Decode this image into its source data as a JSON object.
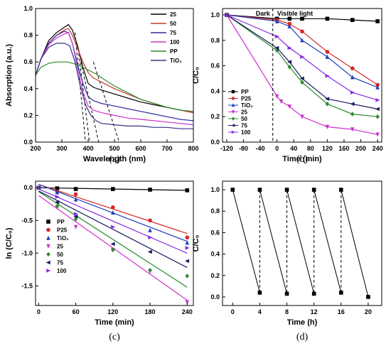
{
  "chart_data": [
    {
      "id": "a",
      "type": "line",
      "caption": "(a)",
      "xlabel": "Wavelength (nm)",
      "ylabel": "Absorption (a.u.)",
      "xlim": [
        200,
        800
      ],
      "ylim": [
        0,
        1.0
      ],
      "xticks": [
        200,
        300,
        400,
        500,
        600,
        700,
        800
      ],
      "yticks": [
        0.0,
        0.2,
        0.4,
        0.6,
        0.8,
        1.0
      ],
      "ytick_labels": [
        "0.0",
        "0.2",
        "0.4",
        "0.6",
        "0.8",
        "1.0"
      ],
      "legend_position": "top-right",
      "series": [
        {
          "name": "25",
          "color": "#000000",
          "x": [
            200,
            220,
            250,
            280,
            310,
            325,
            340,
            360,
            380,
            400,
            420,
            450,
            500,
            550,
            600,
            650,
            700,
            750,
            800
          ],
          "y": [
            0.5,
            0.62,
            0.76,
            0.82,
            0.86,
            0.88,
            0.84,
            0.72,
            0.56,
            0.44,
            0.41,
            0.39,
            0.36,
            0.33,
            0.3,
            0.28,
            0.26,
            0.24,
            0.22
          ]
        },
        {
          "name": "50",
          "color": "#c0392b",
          "x": [
            200,
            220,
            250,
            280,
            310,
            325,
            340,
            360,
            380,
            400,
            420,
            440,
            460,
            500,
            550,
            600,
            650,
            700,
            750,
            800
          ],
          "y": [
            0.5,
            0.62,
            0.74,
            0.8,
            0.84,
            0.85,
            0.8,
            0.7,
            0.6,
            0.52,
            0.48,
            0.46,
            0.44,
            0.4,
            0.36,
            0.32,
            0.29,
            0.26,
            0.24,
            0.22
          ]
        },
        {
          "name": "75",
          "color": "#2c2c9a",
          "x": [
            200,
            220,
            250,
            280,
            310,
            325,
            340,
            360,
            380,
            400,
            420,
            450,
            500,
            550,
            600,
            650,
            700,
            750,
            800
          ],
          "y": [
            0.5,
            0.62,
            0.74,
            0.8,
            0.83,
            0.82,
            0.74,
            0.58,
            0.44,
            0.34,
            0.31,
            0.29,
            0.27,
            0.25,
            0.23,
            0.21,
            0.19,
            0.17,
            0.16
          ]
        },
        {
          "name": "100",
          "color": "#cc33cc",
          "x": [
            200,
            220,
            250,
            280,
            310,
            325,
            340,
            360,
            380,
            400,
            420,
            450,
            500,
            550,
            600,
            650,
            700,
            750,
            800
          ],
          "y": [
            0.5,
            0.62,
            0.73,
            0.78,
            0.81,
            0.82,
            0.74,
            0.55,
            0.38,
            0.27,
            0.24,
            0.22,
            0.2,
            0.18,
            0.17,
            0.16,
            0.15,
            0.14,
            0.13
          ]
        },
        {
          "name": "PP",
          "color": "#2e8b2e",
          "x": [
            200,
            220,
            250,
            280,
            300,
            320,
            340,
            360,
            380,
            400,
            430,
            460,
            500,
            550,
            600,
            650,
            700,
            750,
            800
          ],
          "y": [
            0.5,
            0.56,
            0.59,
            0.6,
            0.6,
            0.6,
            0.59,
            0.58,
            0.56,
            0.54,
            0.51,
            0.47,
            0.42,
            0.37,
            0.32,
            0.29,
            0.26,
            0.24,
            0.23
          ]
        },
        {
          "name": "TiO₂",
          "color": "#33338a",
          "x": [
            200,
            220,
            250,
            280,
            310,
            330,
            350,
            370,
            390,
            410,
            430,
            450,
            500,
            550,
            600,
            650,
            700,
            750,
            800
          ],
          "y": [
            0.5,
            0.62,
            0.71,
            0.74,
            0.74,
            0.72,
            0.6,
            0.42,
            0.28,
            0.2,
            0.16,
            0.14,
            0.13,
            0.12,
            0.12,
            0.11,
            0.11,
            0.1,
            0.1
          ]
        }
      ],
      "tangent_lines": [
        {
          "color": "#000000",
          "x": [
            350,
            390
          ],
          "y": [
            0.82,
            0.0
          ]
        },
        {
          "color": "#000000",
          "x": [
            362,
            405
          ],
          "y": [
            0.7,
            0.0
          ]
        },
        {
          "color": "#000000",
          "x": [
            372,
            440
          ],
          "y": [
            0.6,
            0.0
          ]
        },
        {
          "color": "#000000",
          "x": [
            420,
            518
          ],
          "y": [
            0.6,
            0.0
          ]
        }
      ]
    },
    {
      "id": "b",
      "type": "line",
      "caption": "(b)",
      "xlabel": "Time (min)",
      "ylabel": "C/C₀",
      "xlim": [
        -130,
        250
      ],
      "ylim": [
        0,
        1.05
      ],
      "xticks": [
        -120,
        -80,
        -40,
        0,
        40,
        80,
        120,
        160,
        200,
        240
      ],
      "yticks": [
        0.0,
        0.2,
        0.4,
        0.6,
        0.8,
        1.0
      ],
      "ytick_labels": [
        "0.0",
        "0.2",
        "0.4",
        "0.6",
        "0.8",
        "1.0"
      ],
      "legend_position": "bottom-left",
      "annotations": [
        "Dark",
        "Visible light"
      ],
      "vline_x": -10,
      "series": [
        {
          "name": "PP",
          "color": "#000000",
          "marker": "square",
          "x": [
            -120,
            0,
            30,
            60,
            120,
            180,
            240
          ],
          "y": [
            1.0,
            0.97,
            0.97,
            0.97,
            0.97,
            0.96,
            0.95
          ]
        },
        {
          "name": "P25",
          "color": "#d62728",
          "marker": "circle",
          "x": [
            -120,
            0,
            30,
            60,
            120,
            180,
            240
          ],
          "y": [
            1.0,
            0.96,
            0.93,
            0.87,
            0.71,
            0.58,
            0.45
          ]
        },
        {
          "name": "TiO₂",
          "color": "#1f3fbf",
          "marker": "triangle-up",
          "x": [
            -120,
            0,
            30,
            60,
            120,
            180,
            240
          ],
          "y": [
            1.0,
            0.95,
            0.91,
            0.8,
            0.67,
            0.51,
            0.43
          ]
        },
        {
          "name": "25",
          "color": "#cc33cc",
          "marker": "triangle-down",
          "x": [
            -120,
            0,
            10,
            30,
            60,
            120,
            180,
            240
          ],
          "y": [
            1.0,
            0.36,
            0.32,
            0.28,
            0.2,
            0.12,
            0.1,
            0.06
          ]
        },
        {
          "name": "50",
          "color": "#2e8b2e",
          "marker": "diamond",
          "x": [
            -120,
            0,
            30,
            60,
            120,
            180,
            240
          ],
          "y": [
            1.0,
            0.72,
            0.59,
            0.47,
            0.3,
            0.22,
            0.2
          ]
        },
        {
          "name": "75",
          "color": "#1a1a5e",
          "marker": "triangle-left",
          "x": [
            -120,
            0,
            30,
            60,
            120,
            180,
            240
          ],
          "y": [
            1.0,
            0.74,
            0.63,
            0.5,
            0.34,
            0.3,
            0.26
          ]
        },
        {
          "name": "100",
          "color": "#8a2be2",
          "marker": "triangle-right",
          "x": [
            -120,
            0,
            30,
            60,
            120,
            180,
            240
          ],
          "y": [
            1.0,
            0.83,
            0.74,
            0.67,
            0.52,
            0.39,
            0.33
          ]
        }
      ]
    },
    {
      "id": "c",
      "type": "scatter",
      "caption": "(c)",
      "xlabel": "Time (min)",
      "ylabel": "ln (C/C₀)",
      "xlim": [
        -5,
        250
      ],
      "ylim": [
        -1.8,
        0.1
      ],
      "xticks": [
        0,
        60,
        120,
        180,
        240
      ],
      "yticks": [
        0.0,
        -0.5,
        -1.0,
        -1.5
      ],
      "ytick_labels": [
        "0.0",
        "-0.5",
        "-1.0",
        "-1.5"
      ],
      "legend_position": "bottom-left",
      "series": [
        {
          "name": "PP",
          "color": "#000000",
          "marker": "square",
          "x": [
            0,
            30,
            60,
            120,
            180,
            240
          ],
          "y": [
            0.0,
            -0.01,
            -0.02,
            -0.02,
            -0.03,
            -0.04
          ],
          "fit": [
            [
              0,
              0.0
            ],
            [
              240,
              -0.04
            ]
          ]
        },
        {
          "name": "P25",
          "color": "#d62728",
          "marker": "circle",
          "x": [
            0,
            30,
            60,
            120,
            180,
            240
          ],
          "y": [
            0.0,
            -0.06,
            -0.1,
            -0.3,
            -0.5,
            -0.76
          ],
          "fit": [
            [
              0,
              0.05
            ],
            [
              240,
              -0.7
            ]
          ]
        },
        {
          "name": "TiO₂",
          "color": "#1f3fbf",
          "marker": "triangle-up",
          "x": [
            0,
            30,
            60,
            120,
            180,
            240
          ],
          "y": [
            0.0,
            -0.07,
            -0.18,
            -0.38,
            -0.65,
            -0.84
          ],
          "fit": [
            [
              0,
              0.05
            ],
            [
              240,
              -0.82
            ]
          ]
        },
        {
          "name": "25",
          "color": "#cc33cc",
          "marker": "triangle-down",
          "x": [
            0,
            30,
            60,
            120,
            180,
            240
          ],
          "y": [
            0.0,
            -0.3,
            -0.6,
            -0.95,
            -1.28,
            -1.75
          ],
          "fit": [
            [
              0,
              -0.12
            ],
            [
              240,
              -1.72
            ]
          ]
        },
        {
          "name": "50",
          "color": "#2e8b2e",
          "marker": "diamond",
          "x": [
            0,
            30,
            60,
            120,
            180,
            240
          ],
          "y": [
            0.0,
            -0.28,
            -0.48,
            -0.95,
            -1.26,
            -1.35
          ],
          "fit": [
            [
              0,
              -0.06
            ],
            [
              240,
              -1.52
            ]
          ]
        },
        {
          "name": "75",
          "color": "#1a1a5e",
          "marker": "triangle-left",
          "x": [
            0,
            30,
            60,
            120,
            180,
            240
          ],
          "y": [
            0.0,
            -0.22,
            -0.44,
            -0.86,
            -0.98,
            -1.12
          ],
          "fit": [
            [
              0,
              -0.05
            ],
            [
              240,
              -1.22
            ]
          ]
        },
        {
          "name": "100",
          "color": "#8a2be2",
          "marker": "triangle-right",
          "x": [
            0,
            30,
            60,
            120,
            180,
            240
          ],
          "y": [
            0.0,
            -0.14,
            -0.4,
            -0.6,
            -0.76,
            -0.92
          ],
          "fit": [
            [
              0,
              -0.02
            ],
            [
              240,
              -1.0
            ]
          ]
        }
      ]
    },
    {
      "id": "d",
      "type": "line",
      "caption": "(d)",
      "xlabel": "Time (h)",
      "ylabel": "C/C₀",
      "xlim": [
        -1.5,
        22
      ],
      "ylim": [
        -0.08,
        1.08
      ],
      "xticks": [
        0,
        4,
        8,
        12,
        16,
        20
      ],
      "yticks": [
        0.0,
        0.2,
        0.4,
        0.6,
        0.8,
        1.0
      ],
      "ytick_labels": [
        "0.0",
        "0.2",
        "0.4",
        "0.6",
        "0.8",
        "1.0"
      ],
      "series": [
        {
          "name": "",
          "color": "#000000",
          "marker": "square",
          "x": [
            0,
            4,
            4,
            8,
            8,
            12,
            12,
            16,
            16,
            20
          ],
          "y": [
            1.0,
            0.04,
            1.0,
            0.03,
            1.0,
            0.03,
            1.0,
            0.04,
            1.0,
            0.0
          ]
        }
      ],
      "dashed_x": [
        4,
        8,
        12,
        16
      ]
    }
  ]
}
